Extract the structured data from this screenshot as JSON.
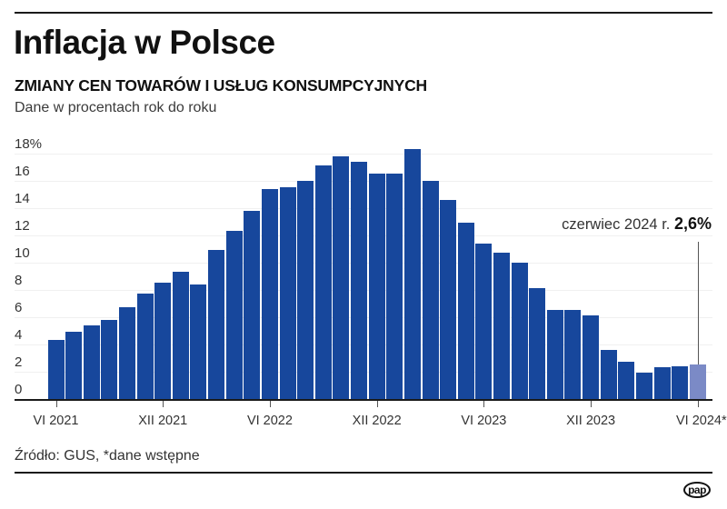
{
  "header": {
    "title": "Inflacja w Polsce",
    "subtitle": "ZMIANY CEN TOWARÓW I USŁUG KONSUMPCYJNYCH",
    "description": "Dane w procentach rok do roku"
  },
  "annotation": {
    "label": "czerwiec 2024 r.",
    "value": "2,6%"
  },
  "footer": {
    "source": "Źródło: GUS, *dane wstępne",
    "logo": "pap"
  },
  "colors": {
    "bar": "#17479c",
    "highlight_bar": "#7b8ac6"
  },
  "chart_data": {
    "type": "bar",
    "title": "Inflacja w Polsce",
    "subtitle": "ZMIANY CEN TOWARÓW I USŁUG KONSUMPCYJNYCH",
    "ylabel": "Dane w procentach rok do roku",
    "xlabel": "",
    "ylim": [
      0,
      18
    ],
    "yticks": [
      "0",
      "2",
      "4",
      "6",
      "8",
      "10",
      "12",
      "14",
      "16",
      "18%"
    ],
    "xtick_labels": [
      "VI 2021",
      "XII 2021",
      "VI 2022",
      "XII 2022",
      "VI 2023",
      "XII 2023",
      "VI 2024*"
    ],
    "grid": true,
    "categories": [
      "VI 2021",
      "VII 2021",
      "VIII 2021",
      "IX 2021",
      "X 2021",
      "XI 2021",
      "XII 2021",
      "I 2022",
      "II 2022",
      "III 2022",
      "IV 2022",
      "V 2022",
      "VI 2022",
      "VII 2022",
      "VIII 2022",
      "IX 2022",
      "X 2022",
      "XI 2022",
      "XII 2022",
      "I 2023",
      "II 2023",
      "III 2023",
      "IV 2023",
      "V 2023",
      "VI 2023",
      "VII 2023",
      "VIII 2023",
      "IX 2023",
      "X 2023",
      "XI 2023",
      "XII 2023",
      "I 2024",
      "II 2024",
      "III 2024",
      "IV 2024",
      "V 2024",
      "VI 2024"
    ],
    "values": [
      4.4,
      5.0,
      5.5,
      5.9,
      6.8,
      7.8,
      8.6,
      9.4,
      8.5,
      11.0,
      12.4,
      13.9,
      15.5,
      15.6,
      16.1,
      17.2,
      17.9,
      17.5,
      16.6,
      16.6,
      18.4,
      16.1,
      14.7,
      13.0,
      11.5,
      10.8,
      10.1,
      8.2,
      6.6,
      6.6,
      6.2,
      3.7,
      2.8,
      2.0,
      2.4,
      2.5,
      2.6
    ],
    "highlight_index": 36,
    "annotations": [
      "czerwiec 2024 r. 2,6%"
    ],
    "source": "Źródło: GUS, *dane wstępne"
  }
}
